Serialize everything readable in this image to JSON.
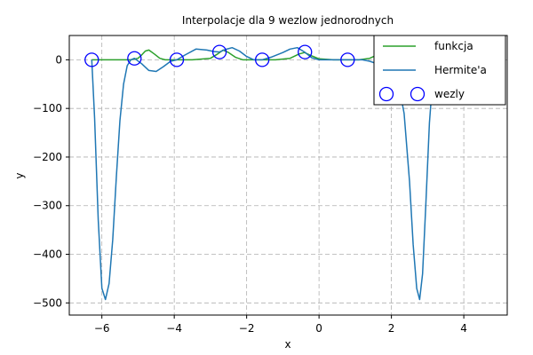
{
  "chart_data": {
    "type": "line",
    "title": "Interpolacje dla 9 wezlow jednorodnych",
    "xlabel": "x",
    "ylabel": "y",
    "xlim": [
      -6.9,
      5.2
    ],
    "ylim": [
      -525,
      50
    ],
    "grid": true,
    "legend_position": "top-right",
    "x_ticks": [
      -6,
      -4,
      -2,
      0,
      2,
      4
    ],
    "x_tick_labels": [
      "−6",
      "−4",
      "−2",
      "0",
      "2",
      "4"
    ],
    "y_ticks": [
      0,
      -100,
      -200,
      -300,
      -400,
      -500
    ],
    "y_tick_labels": [
      "0",
      "−100",
      "−200",
      "−300",
      "−400",
      "−500"
    ],
    "series": [
      {
        "name": "funkcja",
        "color": "#2ca02c",
        "style": "line",
        "x": [
          -6.28,
          -5.6,
          -5.2,
          -5.0,
          -4.9,
          -4.8,
          -4.7,
          -4.55,
          -4.4,
          -4.25,
          -4.1,
          -3.9,
          -3.5,
          -3.0,
          -2.8,
          -2.65,
          -2.5,
          -2.3,
          -2.1,
          -1.95,
          -1.8,
          -1.6,
          -1.2,
          -0.8,
          -0.55,
          -0.4,
          -0.2,
          0.0,
          0.4,
          0.8,
          1.1,
          1.4,
          1.6,
          1.8,
          2.0,
          2.2,
          2.5
        ],
        "y": [
          0,
          0,
          0,
          3,
          10,
          18,
          20,
          12,
          3,
          0,
          0,
          0,
          0,
          3,
          12,
          20,
          15,
          5,
          0,
          0,
          0,
          0,
          0,
          3,
          12,
          15,
          8,
          2,
          0,
          0,
          0,
          3,
          10,
          17,
          20,
          14,
          4
        ]
      },
      {
        "name": "Hermite'a",
        "color": "#1f77b4",
        "style": "line",
        "x": [
          -6.28,
          -6.2,
          -6.1,
          -6.0,
          -5.9,
          -5.8,
          -5.7,
          -5.6,
          -5.5,
          -5.4,
          -5.3,
          -5.2,
          -5.1,
          -4.9,
          -4.7,
          -4.5,
          -4.3,
          -4.1,
          -3.93,
          -3.7,
          -3.4,
          -3.1,
          -2.9,
          -2.75,
          -2.6,
          -2.4,
          -2.2,
          -2.0,
          -1.8,
          -1.57,
          -1.3,
          -1.0,
          -0.8,
          -0.6,
          -0.4,
          -0.2,
          0.0,
          0.2,
          0.4,
          0.6,
          0.79,
          1.0,
          1.2,
          1.4,
          1.6,
          1.8,
          2.0,
          2.2,
          2.35,
          2.5,
          2.6,
          2.7,
          2.78,
          2.86,
          2.95,
          3.05,
          3.15,
          3.25
        ],
        "y": [
          0,
          -120,
          -330,
          -470,
          -493,
          -460,
          -370,
          -240,
          -125,
          -50,
          -12,
          0,
          3,
          -8,
          -22,
          -24,
          -14,
          -3,
          0,
          10,
          22,
          20,
          17,
          16,
          21,
          25,
          18,
          7,
          0,
          0,
          6,
          15,
          22,
          25,
          16,
          4,
          0,
          0,
          0,
          0,
          0,
          0,
          0,
          -3,
          -8,
          -15,
          -25,
          -50,
          -110,
          -250,
          -380,
          -470,
          -493,
          -440,
          -300,
          -130,
          -30,
          0
        ]
      },
      {
        "name": "wezly",
        "color": "#0000ff",
        "style": "marker",
        "x": [
          -6.28,
          -5.1,
          -3.93,
          -2.75,
          -1.57,
          -0.39,
          0.79,
          1.96,
          3.14
        ],
        "y": [
          0,
          3,
          0,
          16,
          0,
          16,
          0,
          0,
          0
        ]
      }
    ]
  }
}
